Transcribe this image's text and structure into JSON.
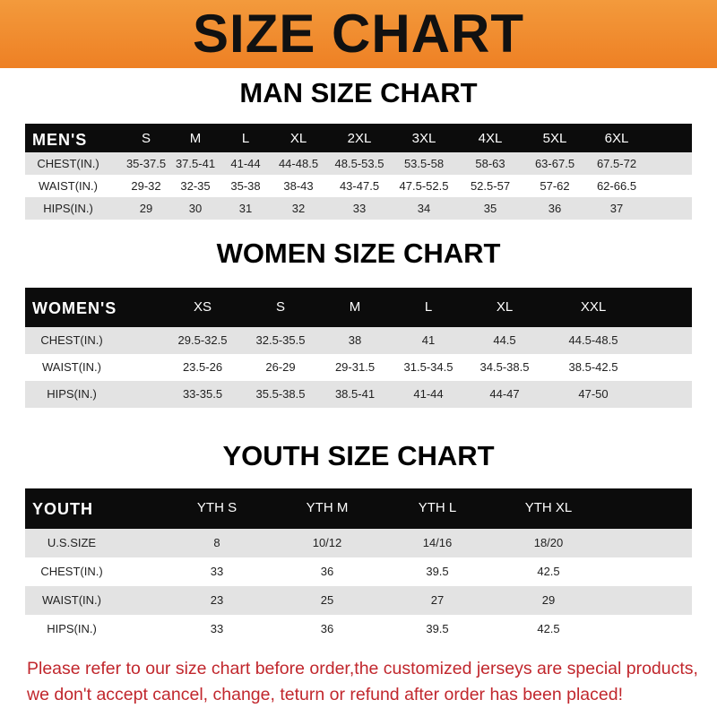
{
  "banner_title": "SIZE CHART",
  "men": {
    "title": "MAN SIZE CHART",
    "header": [
      "MEN'S",
      "S",
      "M",
      "L",
      "XL",
      "2XL",
      "3XL",
      "4XL",
      "5XL",
      "6XL"
    ],
    "rows": [
      [
        "CHEST(IN.)",
        "35-37.5",
        "37.5-41",
        "41-44",
        "44-48.5",
        "48.5-53.5",
        "53.5-58",
        "58-63",
        "63-67.5",
        "67.5-72"
      ],
      [
        "WAIST(IN.)",
        "29-32",
        "32-35",
        "35-38",
        "38-43",
        "43-47.5",
        "47.5-52.5",
        "52.5-57",
        "57-62",
        "62-66.5"
      ],
      [
        "HIPS(IN.)",
        "29",
        "30",
        "31",
        "32",
        "33",
        "34",
        "35",
        "36",
        "37"
      ]
    ]
  },
  "women": {
    "title": "WOMEN SIZE CHART",
    "header": [
      "WOMEN'S",
      "XS",
      "S",
      "M",
      "L",
      "XL",
      "XXL"
    ],
    "rows": [
      [
        "CHEST(IN.)",
        "29.5-32.5",
        "32.5-35.5",
        "38",
        "41",
        "44.5",
        "44.5-48.5"
      ],
      [
        "WAIST(IN.)",
        "23.5-26",
        "26-29",
        "29-31.5",
        "31.5-34.5",
        "34.5-38.5",
        "38.5-42.5"
      ],
      [
        "HIPS(IN.)",
        "33-35.5",
        "35.5-38.5",
        "38.5-41",
        "41-44",
        "44-47",
        "47-50"
      ]
    ]
  },
  "youth": {
    "title": "YOUTH SIZE CHART",
    "header": [
      "YOUTH",
      "YTH S",
      "YTH M",
      "YTH L",
      "YTH XL"
    ],
    "rows": [
      [
        "U.S.SIZE",
        "8",
        "10/12",
        "14/16",
        "18/20"
      ],
      [
        "CHEST(IN.)",
        "33",
        "36",
        "39.5",
        "42.5"
      ],
      [
        "WAIST(IN.)",
        "23",
        "25",
        "27",
        "29"
      ],
      [
        "HIPS(IN.)",
        "33",
        "36",
        "39.5",
        "42.5"
      ]
    ]
  },
  "notice": {
    "line1": "Please refer to our size chart before order,the customized jerseys are special products,",
    "line2": "we don't accept cancel, change, teturn or refund after order has been placed!"
  },
  "colors": {
    "banner": "#ee8024",
    "header_row": "#0c0c0c",
    "stripe": "#e3e3e3",
    "notice": "#c1272d"
  }
}
